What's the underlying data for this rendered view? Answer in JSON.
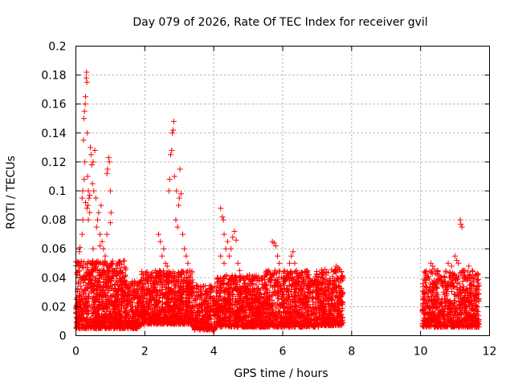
{
  "chart_data": {
    "type": "scatter",
    "title": "Day 079 of 2026, Rate Of TEC Index for receiver gvil",
    "xlabel": "GPS time / hours",
    "ylabel": "ROTI / TECUs",
    "xlim": [
      0,
      12
    ],
    "ylim": [
      0,
      0.2
    ],
    "x_ticks": [
      0,
      2,
      4,
      6,
      8,
      10,
      12
    ],
    "x_tick_labels": [
      "0",
      "2",
      "4",
      "6",
      "8",
      "10",
      "12"
    ],
    "y_ticks": [
      0,
      0.02,
      0.04,
      0.06,
      0.08,
      0.1,
      0.12,
      0.14,
      0.16,
      0.18,
      0.2
    ],
    "y_tick_labels": [
      "0",
      "0.02",
      "0.04",
      "0.06",
      "0.08",
      "0.1",
      "0.12",
      "0.14",
      "0.16",
      "0.18",
      "0.2"
    ],
    "grid": true,
    "marker": "plus",
    "color": "#ff0000",
    "series": [
      {
        "name": "ROTI",
        "points": [
          [
            0.02,
            0.025
          ],
          [
            0.05,
            0.032
          ],
          [
            0.08,
            0.045
          ],
          [
            0.1,
            0.058
          ],
          [
            0.12,
            0.061
          ],
          [
            0.15,
            0.05
          ],
          [
            0.18,
            0.07
          ],
          [
            0.2,
            0.1
          ],
          [
            0.22,
            0.135
          ],
          [
            0.23,
            0.15
          ],
          [
            0.25,
            0.155
          ],
          [
            0.26,
            0.12
          ],
          [
            0.27,
            0.16
          ],
          [
            0.28,
            0.165
          ],
          [
            0.3,
            0.178
          ],
          [
            0.31,
            0.182
          ],
          [
            0.32,
            0.175
          ],
          [
            0.33,
            0.14
          ],
          [
            0.34,
            0.11
          ],
          [
            0.35,
            0.09
          ],
          [
            0.36,
            0.08
          ],
          [
            0.38,
            0.095
          ],
          [
            0.4,
            0.085
          ],
          [
            0.42,
            0.13
          ],
          [
            0.44,
            0.125
          ],
          [
            0.46,
            0.118
          ],
          [
            0.48,
            0.105
          ],
          [
            0.5,
            0.12
          ],
          [
            0.52,
            0.1
          ],
          [
            0.55,
            0.128
          ],
          [
            0.58,
            0.095
          ],
          [
            0.6,
            0.075
          ],
          [
            0.63,
            0.08
          ],
          [
            0.66,
            0.085
          ],
          [
            0.7,
            0.07
          ],
          [
            0.73,
            0.09
          ],
          [
            0.76,
            0.065
          ],
          [
            0.8,
            0.06
          ],
          [
            0.85,
            0.055
          ],
          [
            0.9,
            0.112
          ],
          [
            0.92,
            0.115
          ],
          [
            0.95,
            0.123
          ],
          [
            0.97,
            0.12
          ],
          [
            1.0,
            0.1
          ],
          [
            1.02,
            0.085
          ],
          [
            1.05,
            0.05
          ],
          [
            0.18,
            0.095
          ],
          [
            0.2,
            0.08
          ],
          [
            0.24,
            0.108
          ],
          [
            0.28,
            0.092
          ],
          [
            0.32,
            0.088
          ],
          [
            0.36,
            0.1
          ],
          [
            0.4,
            0.097
          ],
          [
            0.5,
            0.06
          ],
          [
            0.6,
            0.05
          ],
          [
            0.7,
            0.062
          ],
          [
            0.8,
            0.045
          ],
          [
            0.9,
            0.07
          ],
          [
            1.0,
            0.078
          ],
          [
            2.4,
            0.07
          ],
          [
            2.45,
            0.065
          ],
          [
            2.5,
            0.055
          ],
          [
            2.55,
            0.06
          ],
          [
            2.6,
            0.05
          ],
          [
            2.65,
            0.048
          ],
          [
            2.7,
            0.1
          ],
          [
            2.72,
            0.108
          ],
          [
            2.75,
            0.125
          ],
          [
            2.78,
            0.128
          ],
          [
            2.8,
            0.14
          ],
          [
            2.82,
            0.142
          ],
          [
            2.84,
            0.148
          ],
          [
            2.86,
            0.11
          ],
          [
            2.9,
            0.08
          ],
          [
            2.92,
            0.1
          ],
          [
            2.95,
            0.075
          ],
          [
            2.98,
            0.09
          ],
          [
            3.0,
            0.095
          ],
          [
            3.02,
            0.115
          ],
          [
            3.05,
            0.098
          ],
          [
            3.1,
            0.07
          ],
          [
            3.15,
            0.06
          ],
          [
            3.2,
            0.055
          ],
          [
            3.25,
            0.05
          ],
          [
            3.3,
            0.045
          ],
          [
            2.3,
            0.045
          ],
          [
            2.2,
            0.04
          ],
          [
            2.1,
            0.042
          ],
          [
            2.0,
            0.038
          ],
          [
            4.2,
            0.088
          ],
          [
            4.25,
            0.082
          ],
          [
            4.28,
            0.08
          ],
          [
            4.3,
            0.07
          ],
          [
            4.35,
            0.06
          ],
          [
            4.4,
            0.065
          ],
          [
            4.45,
            0.055
          ],
          [
            4.5,
            0.06
          ],
          [
            4.55,
            0.068
          ],
          [
            4.6,
            0.072
          ],
          [
            4.65,
            0.066
          ],
          [
            4.7,
            0.05
          ],
          [
            4.75,
            0.045
          ],
          [
            4.2,
            0.055
          ],
          [
            4.3,
            0.05
          ],
          [
            5.7,
            0.065
          ],
          [
            5.75,
            0.064
          ],
          [
            5.8,
            0.062
          ],
          [
            5.85,
            0.055
          ],
          [
            5.9,
            0.05
          ],
          [
            5.6,
            0.045
          ],
          [
            6.2,
            0.05
          ],
          [
            6.25,
            0.055
          ],
          [
            6.3,
            0.058
          ],
          [
            6.35,
            0.05
          ],
          [
            6.4,
            0.045
          ],
          [
            6.5,
            0.042
          ],
          [
            6.6,
            0.04
          ],
          [
            7.5,
            0.045
          ],
          [
            7.55,
            0.048
          ],
          [
            7.6,
            0.047
          ],
          [
            7.65,
            0.046
          ],
          [
            7.7,
            0.044
          ],
          [
            10.3,
            0.05
          ],
          [
            10.35,
            0.048
          ],
          [
            10.4,
            0.046
          ],
          [
            10.5,
            0.045
          ],
          [
            10.6,
            0.04
          ],
          [
            10.8,
            0.05
          ],
          [
            10.9,
            0.048
          ],
          [
            11.0,
            0.055
          ],
          [
            11.05,
            0.052
          ],
          [
            11.1,
            0.05
          ],
          [
            11.15,
            0.08
          ],
          [
            11.17,
            0.077
          ],
          [
            11.2,
            0.075
          ],
          [
            11.25,
            0.045
          ],
          [
            11.3,
            0.04
          ],
          [
            11.4,
            0.048
          ],
          [
            11.5,
            0.045
          ],
          [
            11.6,
            0.042
          ]
        ],
        "dense_bands": [
          {
            "x_range": [
              0.0,
              1.45
            ],
            "y_range": [
              0.005,
              0.052
            ],
            "count": 900
          },
          {
            "x_range": [
              1.45,
              1.9
            ],
            "y_range": [
              0.005,
              0.038
            ],
            "count": 220
          },
          {
            "x_range": [
              1.9,
              3.4
            ],
            "y_range": [
              0.008,
              0.045
            ],
            "count": 900
          },
          {
            "x_range": [
              3.4,
              4.1
            ],
            "y_range": [
              0.004,
              0.035
            ],
            "count": 300
          },
          {
            "x_range": [
              4.1,
              5.5
            ],
            "y_range": [
              0.006,
              0.042
            ],
            "count": 800
          },
          {
            "x_range": [
              5.5,
              7.05
            ],
            "y_range": [
              0.006,
              0.045
            ],
            "count": 800
          },
          {
            "x_range": [
              7.05,
              7.75
            ],
            "y_range": [
              0.007,
              0.046
            ],
            "count": 400
          },
          {
            "x_range": [
              10.05,
              11.7
            ],
            "y_range": [
              0.006,
              0.045
            ],
            "count": 800
          }
        ]
      }
    ]
  }
}
